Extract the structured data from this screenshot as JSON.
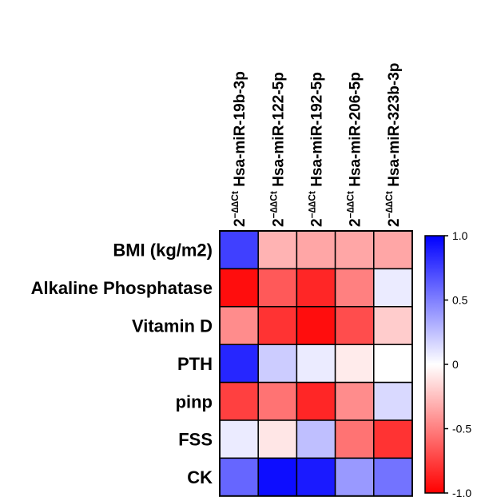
{
  "chart_data": {
    "type": "heatmap",
    "columns": [
      {
        "prefix": "2",
        "superscript": "−∆∆Ct",
        "name": "Hsa-miR-19b-3p"
      },
      {
        "prefix": "2",
        "superscript": "−∆∆Ct",
        "name": "Hsa-miR-122-5p"
      },
      {
        "prefix": "2",
        "superscript": "−∆∆Ct",
        "name": "Hsa-miR-192-5p"
      },
      {
        "prefix": "2",
        "superscript": "−∆∆Ct",
        "name": "Hsa-miR-206-5p"
      },
      {
        "prefix": "2",
        "superscript": "−∆∆Ct",
        "name": "Hsa-miR-323b-3p"
      }
    ],
    "rows": [
      "BMI (kg/m2)",
      "Alkaline Phosphatase",
      "Vitamin D",
      "PTH",
      "pinp",
      "FSS",
      "CK"
    ],
    "values": [
      [
        0.75,
        -0.3,
        -0.35,
        -0.35,
        -0.35
      ],
      [
        -0.95,
        -0.65,
        -0.85,
        -0.5,
        0.08
      ],
      [
        -0.45,
        -0.8,
        -0.95,
        -0.7,
        -0.2
      ],
      [
        0.85,
        0.2,
        0.08,
        -0.08,
        0.0
      ],
      [
        -0.75,
        -0.55,
        -0.85,
        -0.45,
        0.15
      ],
      [
        0.08,
        -0.1,
        0.25,
        -0.55,
        -0.8
      ],
      [
        0.6,
        0.95,
        0.9,
        0.4,
        0.55
      ]
    ],
    "colorbar": {
      "min": -1.0,
      "max": 1.0,
      "ticks": [
        "1.0",
        "0.5",
        "0",
        "-0.5",
        "-1.0"
      ],
      "tick_values": [
        1.0,
        0.5,
        0,
        -0.5,
        -1.0
      ],
      "colors": {
        "negative": "#ff0000",
        "zero": "#ffffff",
        "positive": "#0000ff"
      }
    },
    "title": "",
    "xlabel": "",
    "ylabel": ""
  }
}
